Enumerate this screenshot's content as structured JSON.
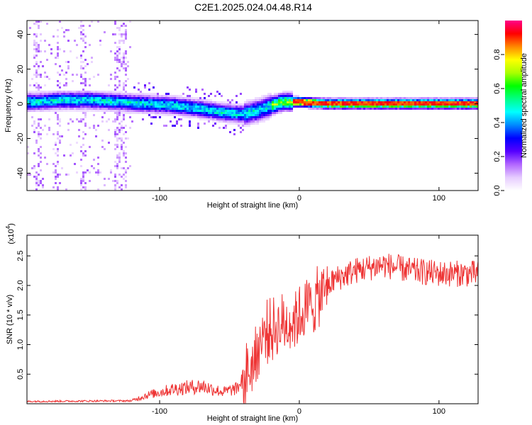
{
  "chart_data": [
    {
      "type": "heatmap",
      "title": "C2E1.2025.024.04.48.R14",
      "xlabel": "Height of straight line (km)",
      "ylabel": "Frequency (Hz)",
      "xlim": [
        -195,
        128
      ],
      "ylim": [
        -50,
        48
      ],
      "xticks": [
        "-100",
        "0",
        "100"
      ],
      "yticks": [
        "-40",
        "-20",
        "0",
        "20",
        "40"
      ],
      "colorbar": {
        "label": "Normalized spectral amplitude",
        "range": [
          0,
          1
        ],
        "ticks": [
          "0.0",
          "0.2",
          "0.4",
          "0.6",
          "0.8"
        ],
        "colors": [
          "#ffffff",
          "#e6ccff",
          "#b266ff",
          "#5500ff",
          "#0000ff",
          "#0088ff",
          "#00ffff",
          "#00ff88",
          "#00ff00",
          "#aaff00",
          "#ffff00",
          "#ff8800",
          "#ff0000",
          "#ff0088"
        ]
      },
      "ridge": [
        {
          "x": -190,
          "f": 1
        },
        {
          "x": -170,
          "f": 2
        },
        {
          "x": -150,
          "f": 2
        },
        {
          "x": -130,
          "f": 1
        },
        {
          "x": -110,
          "f": 0
        },
        {
          "x": -90,
          "f": -1
        },
        {
          "x": -70,
          "f": -3
        },
        {
          "x": -55,
          "f": -5
        },
        {
          "x": -40,
          "f": -6
        },
        {
          "x": -30,
          "f": -4
        },
        {
          "x": -20,
          "f": -1
        },
        {
          "x": -12,
          "f": 1
        },
        {
          "x": 0,
          "f": 1
        },
        {
          "x": 20,
          "f": 0
        },
        {
          "x": 60,
          "f": 0
        },
        {
          "x": 100,
          "f": 0
        },
        {
          "x": 128,
          "f": 0
        }
      ]
    },
    {
      "type": "line",
      "xlabel": "Height of straight line (km)",
      "ylabel": "SNR (10 * v/v)",
      "scale_label": "(x10",
      "scale_exp": "4",
      "xlim": [
        -195,
        128
      ],
      "ylim": [
        0,
        2.85
      ],
      "xticks": [
        "-100",
        "0",
        "100"
      ],
      "yticks": [
        "0.5",
        "1.0",
        "1.5",
        "2.0",
        "2.5"
      ],
      "line_color": "#ee3333",
      "trend": [
        {
          "x": -195,
          "y": 0.04
        },
        {
          "x": -120,
          "y": 0.05
        },
        {
          "x": -110,
          "y": 0.14
        },
        {
          "x": -90,
          "y": 0.25
        },
        {
          "x": -70,
          "y": 0.3
        },
        {
          "x": -55,
          "y": 0.2
        },
        {
          "x": -45,
          "y": 0.25
        },
        {
          "x": -35,
          "y": 0.6
        },
        {
          "x": -25,
          "y": 1.2
        },
        {
          "x": -15,
          "y": 1.3
        },
        {
          "x": -5,
          "y": 1.4
        },
        {
          "x": 5,
          "y": 1.6
        },
        {
          "x": 15,
          "y": 1.8
        },
        {
          "x": 25,
          "y": 2.1
        },
        {
          "x": 40,
          "y": 2.25
        },
        {
          "x": 60,
          "y": 2.35
        },
        {
          "x": 80,
          "y": 2.25
        },
        {
          "x": 100,
          "y": 2.2
        },
        {
          "x": 128,
          "y": 2.2
        }
      ]
    }
  ]
}
